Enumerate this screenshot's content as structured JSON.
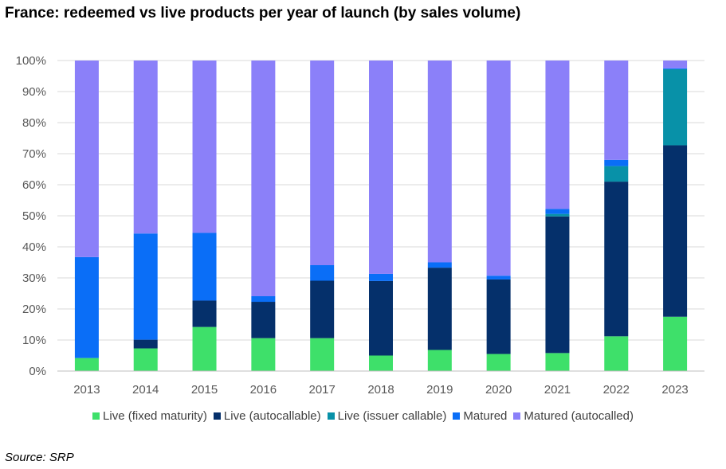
{
  "chart_data": {
    "type": "bar",
    "stacked": true,
    "title": "France: redeemed vs live products per year of launch (by sales volume)",
    "categories": [
      "2013",
      "2014",
      "2015",
      "2016",
      "2017",
      "2018",
      "2019",
      "2020",
      "2021",
      "2022",
      "2023"
    ],
    "ylim": [
      0,
      100
    ],
    "yticks": [
      "0%",
      "10%",
      "20%",
      "30%",
      "40%",
      "50%",
      "60%",
      "70%",
      "80%",
      "90%",
      "100%"
    ],
    "grid": true,
    "legend_position": "bottom",
    "series": [
      {
        "name": "Live (fixed maturity)",
        "color": "#3ee06a",
        "values": [
          4.2,
          7.3,
          14.2,
          10.6,
          10.6,
          5.0,
          6.8,
          5.5,
          5.8,
          11.2,
          17.5
        ]
      },
      {
        "name": "Live (autocallable)",
        "color": "#05306b",
        "values": [
          0,
          2.8,
          8.5,
          11.7,
          18.5,
          24.0,
          26.5,
          24.0,
          44.0,
          49.8,
          55.2
        ]
      },
      {
        "name": "Live (issuer callable)",
        "color": "#0891a8",
        "values": [
          0,
          0,
          0,
          0,
          0,
          0,
          0,
          0,
          0.8,
          5.0,
          24.5
        ]
      },
      {
        "name": "Matured",
        "color": "#0a6ef7",
        "values": [
          32.5,
          34.2,
          21.8,
          1.8,
          5.0,
          2.3,
          1.7,
          1.2,
          1.6,
          2.0,
          0.3
        ]
      },
      {
        "name": "Matured (autocalled)",
        "color": "#8b80f9",
        "values": [
          63.3,
          55.7,
          55.5,
          75.9,
          65.9,
          68.7,
          65.0,
          69.3,
          47.8,
          32.0,
          2.5
        ]
      }
    ]
  },
  "source": "Source: SRP"
}
